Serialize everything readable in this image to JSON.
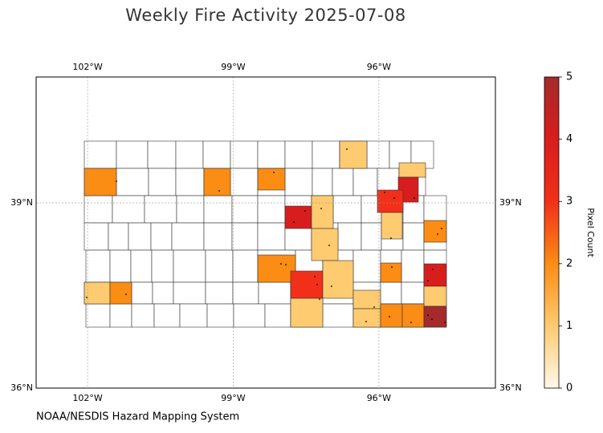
{
  "chart_data": {
    "type": "choropleth",
    "title": "Weekly Fire Activity 2025-07-08",
    "xlim": [
      -103.06,
      -93.6
    ],
    "ylim": [
      36,
      41.04
    ],
    "xticks": [
      {
        "value": -102,
        "label": "102°W"
      },
      {
        "value": -99,
        "label": "99°W"
      },
      {
        "value": -96,
        "label": "96°W"
      }
    ],
    "yticks": [
      {
        "value": 36,
        "label": "36°N"
      },
      {
        "value": 39,
        "label": "39°N"
      }
    ],
    "grid": true,
    "values": [
      2,
      2,
      2,
      1,
      1,
      4,
      3,
      4,
      1,
      1,
      2,
      1,
      2,
      3,
      1,
      2,
      4,
      1,
      1,
      2,
      1,
      1,
      1,
      2,
      2,
      5
    ],
    "colorbar": {
      "label": "Pixel Count",
      "lim": [
        0,
        5
      ],
      "ticks": [
        0,
        1,
        2,
        3,
        4,
        5
      ],
      "colors": [
        "#fff8e8",
        "#fecb70",
        "#fb8c14",
        "#f2301a",
        "#d81d1d",
        "#a52a2a"
      ]
    },
    "source": "NOAA/NESDIS Hazard Mapping System"
  }
}
